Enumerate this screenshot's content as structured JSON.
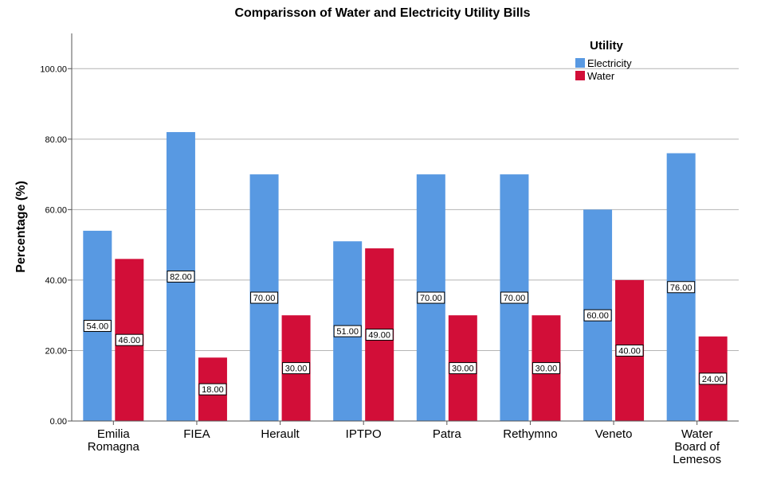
{
  "chart_data": {
    "type": "bar",
    "title": "Comparisson of Water and Electricity Utility Bills",
    "xlabel": "",
    "ylabel": "Percentage (%)",
    "ylim": [
      0,
      110
    ],
    "yticks": [
      0,
      20,
      40,
      60,
      80,
      100
    ],
    "ytick_labels": [
      "0.00",
      "20.00",
      "40.00",
      "60.00",
      "80.00",
      "100.00"
    ],
    "grid": true,
    "categories": [
      [
        "Emilia",
        "Romagna"
      ],
      [
        "FIEA"
      ],
      [
        "Herault"
      ],
      [
        "IPTPO"
      ],
      [
        "Patra"
      ],
      [
        "Rethymno"
      ],
      [
        "Veneto"
      ],
      [
        "Water",
        "Board of",
        "Lemesos"
      ]
    ],
    "series": [
      {
        "name": "Electricity",
        "color": "#5899e2",
        "values": [
          54,
          82,
          70,
          51,
          70,
          70,
          60,
          76
        ],
        "labels": [
          "54.00",
          "82.00",
          "70.00",
          "51.00",
          "70.00",
          "70.00",
          "60.00",
          "76.00"
        ]
      },
      {
        "name": "Water",
        "color": "#d20e38",
        "values": [
          46,
          18,
          30,
          49,
          30,
          30,
          40,
          24
        ],
        "labels": [
          "46.00",
          "18.00",
          "30.00",
          "49.00",
          "30.00",
          "30.00",
          "40.00",
          "24.00"
        ]
      }
    ],
    "legend": {
      "title": "Utility",
      "position": "top-right"
    }
  }
}
